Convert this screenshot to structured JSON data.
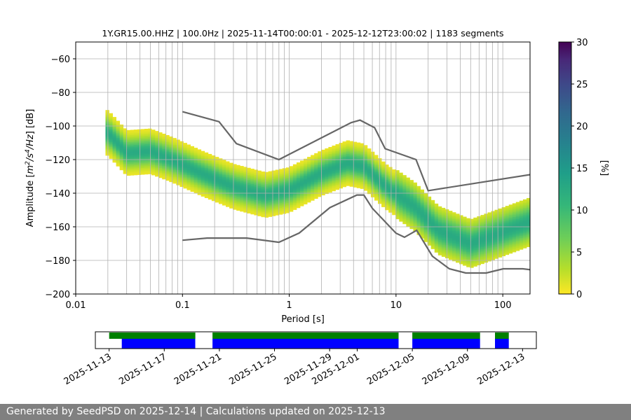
{
  "chart_data": [
    {
      "type": "heatmap",
      "title": "1Y.GR15.00.HHZ | 100.0Hz | 2025-11-14T00:00:01 - 2025-12-12T23:00:02 | 1183 segments",
      "xlabel": "Period [s]",
      "ylabel_parts": [
        "Amplitude [",
        "m",
        "2",
        "/s",
        "4",
        "/Hz",
        "] [dB]"
      ],
      "x_scale": "log",
      "xlim": [
        0.01,
        180
      ],
      "ylim": [
        -200,
        -50
      ],
      "x_ticks": [
        0.01,
        0.1,
        1,
        10,
        100
      ],
      "x_tick_labels": [
        "0.01",
        "0.1",
        "1",
        "10",
        "100"
      ],
      "y_ticks": [
        -200,
        -180,
        -160,
        -140,
        -120,
        -100,
        -80,
        -60
      ],
      "y_tick_labels": [
        "−200",
        "−180",
        "−160",
        "−140",
        "−120",
        "−100",
        "−80",
        "−60"
      ],
      "grid": true,
      "series": [
        {
          "name": "mode (peak probability)",
          "points": [
            [
              0.02,
              -104
            ],
            [
              0.03,
              -116
            ],
            [
              0.05,
              -115
            ],
            [
              0.08,
              -120
            ],
            [
              0.15,
              -128
            ],
            [
              0.3,
              -136
            ],
            [
              0.6,
              -141
            ],
            [
              1.0,
              -138
            ],
            [
              2.0,
              -128
            ],
            [
              3.5,
              -122
            ],
            [
              5.0,
              -124
            ],
            [
              8.0,
              -136
            ],
            [
              15.0,
              -148
            ],
            [
              25.0,
              -162
            ],
            [
              50.0,
              -170
            ],
            [
              100.0,
              -163
            ],
            [
              180.0,
              -157
            ]
          ]
        },
        {
          "name": "high noise model",
          "color": "#666666",
          "points": [
            [
              0.1,
              -91.5
            ],
            [
              0.22,
              -97.4
            ],
            [
              0.32,
              -110.5
            ],
            [
              0.8,
              -120
            ],
            [
              3.8,
              -98
            ],
            [
              4.6,
              -96.5
            ],
            [
              6.3,
              -101
            ],
            [
              7.9,
              -113.5
            ],
            [
              15.4,
              -120
            ],
            [
              20,
              -138.5
            ],
            [
              354,
              -126
            ]
          ]
        },
        {
          "name": "low noise model",
          "color": "#666666",
          "points": [
            [
              0.1,
              -168
            ],
            [
              0.17,
              -166.7
            ],
            [
              0.4,
              -166.7
            ],
            [
              0.8,
              -169.2
            ],
            [
              1.24,
              -163.7
            ],
            [
              2.4,
              -148.6
            ],
            [
              4.3,
              -141.1
            ],
            [
              5.0,
              -141.1
            ],
            [
              6.0,
              -149
            ],
            [
              10,
              -163.8
            ],
            [
              12,
              -166.2
            ],
            [
              15.6,
              -162.1
            ],
            [
              21.9,
              -177.5
            ],
            [
              31.6,
              -185
            ],
            [
              45,
              -187.5
            ],
            [
              70,
              -187.5
            ],
            [
              101,
              -185
            ],
            [
              154,
              -185
            ],
            [
              328,
              -187.5
            ]
          ]
        }
      ]
    },
    {
      "type": "colorbar",
      "label": "[%]",
      "range": [
        0,
        30
      ],
      "ticks": [
        0,
        5,
        10,
        15,
        20,
        25,
        30
      ],
      "colormap": "viridis_r"
    },
    {
      "type": "timeline",
      "x_tick_labels": [
        "2025-11-13",
        "2025-11-17",
        "2025-11-21",
        "2025-11-25",
        "2025-11-29",
        "2025-12-01",
        "2025-12-05",
        "2025-12-09",
        "2025-12-13"
      ],
      "x_ticks": [
        "2025-11-13",
        "2025-11-17",
        "2025-11-21",
        "2025-11-25",
        "2025-11-29",
        "2025-12-01",
        "2025-12-05",
        "2025-12-09",
        "2025-12-13"
      ],
      "xlim": [
        "2025-11-12",
        "2025-12-14"
      ],
      "tracks": [
        {
          "name": "green",
          "color": "#008000",
          "segments": [
            [
              "2025-11-13",
              "2025-11-19T06:00"
            ],
            [
              "2025-11-20T12:00",
              "2025-12-04"
            ],
            [
              "2025-12-05",
              "2025-12-09T22:00"
            ],
            [
              "2025-12-11",
              "2025-12-12"
            ]
          ]
        },
        {
          "name": "blue",
          "color": "#0000ff",
          "segments": [
            [
              "2025-11-13T22:00",
              "2025-11-19T06:00"
            ],
            [
              "2025-11-20T12:00",
              "2025-12-04"
            ],
            [
              "2025-12-05",
              "2025-12-09T22:00"
            ],
            [
              "2025-12-11",
              "2025-12-12"
            ]
          ]
        }
      ]
    }
  ],
  "footer": {
    "text": "Generated by SeedPSD on 2025-12-14 | Calculations updated on 2025-12-13"
  }
}
